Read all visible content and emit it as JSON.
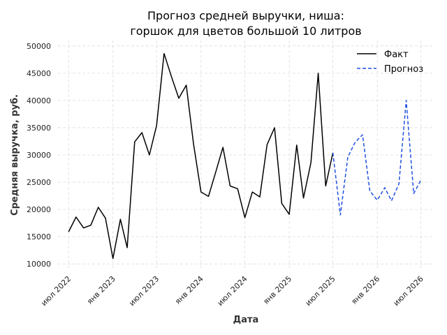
{
  "chart_data": {
    "type": "line",
    "title_lines": [
      "Прогноз средней выручки, ниша:",
      "горшок для цветов большой 10 литров"
    ],
    "xlabel": "Дата",
    "ylabel": "Средняя выручка, руб.",
    "ylim": [
      9000,
      51000
    ],
    "yticks": [
      10000,
      15000,
      20000,
      25000,
      30000,
      35000,
      40000,
      45000,
      50000
    ],
    "xlim": [
      "2022-05-18",
      "2026-08-26"
    ],
    "xticks": [
      {
        "date": "2022-07-01",
        "label": "июл 2022"
      },
      {
        "date": "2023-01-01",
        "label": "янв 2023"
      },
      {
        "date": "2023-07-01",
        "label": "июл 2023"
      },
      {
        "date": "2024-01-01",
        "label": "янв 2024"
      },
      {
        "date": "2024-07-01",
        "label": "июл 2024"
      },
      {
        "date": "2025-01-01",
        "label": "янв 2025"
      },
      {
        "date": "2025-07-01",
        "label": "июл 2025"
      },
      {
        "date": "2026-01-01",
        "label": "янв 2026"
      },
      {
        "date": "2026-07-01",
        "label": "июл 2026"
      }
    ],
    "grid": true,
    "legend_position": "top-right",
    "series": [
      {
        "name": "Факт",
        "color": "#000000",
        "style": "solid",
        "points": [
          [
            "2022-07-01",
            15900
          ],
          [
            "2022-08-01",
            18600
          ],
          [
            "2022-09-01",
            16600
          ],
          [
            "2022-10-01",
            17100
          ],
          [
            "2022-11-01",
            20400
          ],
          [
            "2022-12-01",
            18400
          ],
          [
            "2023-01-01",
            11000
          ],
          [
            "2023-02-01",
            18200
          ],
          [
            "2023-03-01",
            13000
          ],
          [
            "2023-04-01",
            32400
          ],
          [
            "2023-05-01",
            34100
          ],
          [
            "2023-06-01",
            30000
          ],
          [
            "2023-07-01",
            35400
          ],
          [
            "2023-08-01",
            48600
          ],
          [
            "2023-09-01",
            44300
          ],
          [
            "2023-10-01",
            40400
          ],
          [
            "2023-11-01",
            42800
          ],
          [
            "2023-12-01",
            32000
          ],
          [
            "2024-01-01",
            23200
          ],
          [
            "2024-02-01",
            22400
          ],
          [
            "2024-03-01",
            26700
          ],
          [
            "2024-04-01",
            31400
          ],
          [
            "2024-05-01",
            24300
          ],
          [
            "2024-06-01",
            23800
          ],
          [
            "2024-07-01",
            18500
          ],
          [
            "2024-08-01",
            23200
          ],
          [
            "2024-09-01",
            22300
          ],
          [
            "2024-10-01",
            31900
          ],
          [
            "2024-11-01",
            35000
          ],
          [
            "2024-12-01",
            21100
          ],
          [
            "2025-01-01",
            19100
          ],
          [
            "2025-02-01",
            31800
          ],
          [
            "2025-03-01",
            22100
          ],
          [
            "2025-04-01",
            28600
          ],
          [
            "2025-05-01",
            45000
          ],
          [
            "2025-06-01",
            24300
          ],
          [
            "2025-07-01",
            30400
          ]
        ]
      },
      {
        "name": "Прогноз",
        "color": "#1f4fe0",
        "style": "dashed",
        "points": [
          [
            "2025-07-01",
            30400
          ],
          [
            "2025-08-01",
            19000
          ],
          [
            "2025-09-01",
            29600
          ],
          [
            "2025-10-01",
            32300
          ],
          [
            "2025-11-01",
            33700
          ],
          [
            "2025-12-01",
            23400
          ],
          [
            "2026-01-01",
            21700
          ],
          [
            "2026-02-01",
            24000
          ],
          [
            "2026-03-01",
            21600
          ],
          [
            "2026-04-01",
            24700
          ],
          [
            "2026-05-01",
            40000
          ],
          [
            "2026-06-01",
            22900
          ],
          [
            "2026-07-01",
            25400
          ]
        ]
      }
    ]
  }
}
